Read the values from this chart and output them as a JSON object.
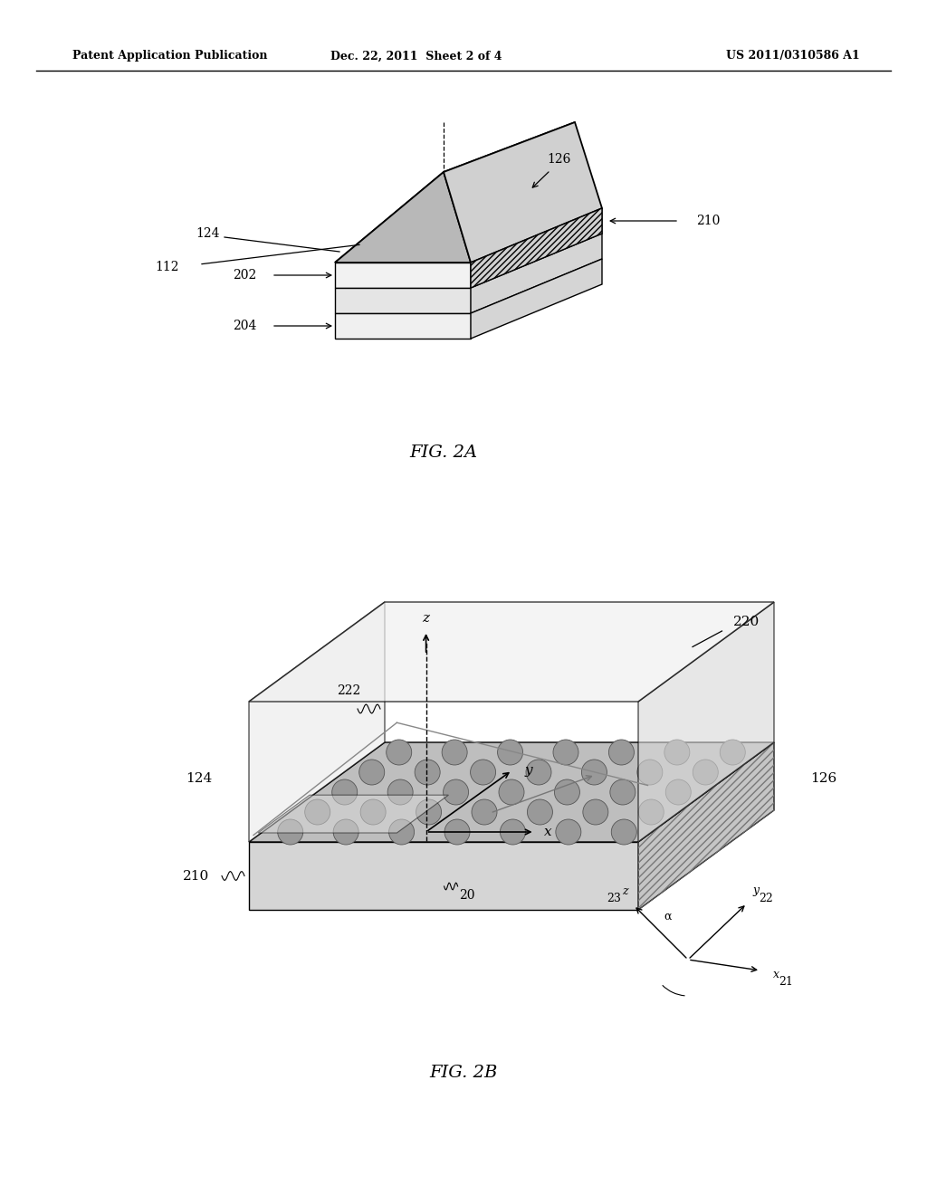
{
  "bg_color": "#ffffff",
  "header_left": "Patent Application Publication",
  "header_mid": "Dec. 22, 2011  Sheet 2 of 4",
  "header_right": "US 2011/0310586 A1",
  "fig2a_caption": "FIG. 2A",
  "fig2b_caption": "FIG. 2B"
}
